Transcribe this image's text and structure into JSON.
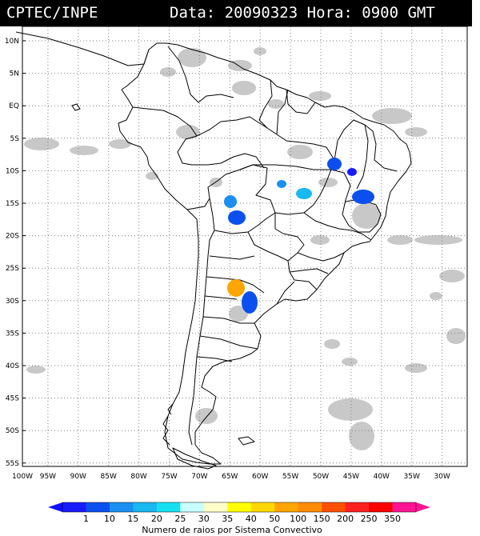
{
  "header": {
    "source": "CPTEC/INPE",
    "date_label": "Data:",
    "date_value": "20090323",
    "hour_label": "Hora:",
    "hour_value": "0900 GMT"
  },
  "map": {
    "lat_labels": [
      "10N",
      "5N",
      "EQ",
      "5S",
      "10S",
      "15S",
      "20S",
      "25S",
      "30S",
      "35S",
      "40S",
      "45S",
      "50S",
      "55S"
    ],
    "lon_labels": [
      "100W",
      "95W",
      "90W",
      "85W",
      "80W",
      "75W",
      "70W",
      "65W",
      "60W",
      "55W",
      "50W",
      "45W",
      "40W",
      "35W",
      "30W"
    ],
    "cloud_color": "#c8c8c8",
    "grid_color": "#808080"
  },
  "legend": {
    "title": "Numero de raios por Sistema Convectivo",
    "ticks": [
      "1",
      "10",
      "15",
      "20",
      "25",
      "30",
      "35",
      "40",
      "50",
      "100",
      "150",
      "200",
      "250",
      "350"
    ],
    "colors": [
      "#1a1aff",
      "#0b50ee",
      "#1a8ff0",
      "#18b8f0",
      "#16e0f0",
      "#c8ffff",
      "#ffffc8",
      "#ffff00",
      "#ffd700",
      "#ffa500",
      "#ff8c00",
      "#ff5000",
      "#ff2020",
      "#ff0000",
      "#ff1493"
    ]
  },
  "systems": [
    {
      "name": "system-north-a",
      "color": "#0b50ee"
    },
    {
      "name": "system-north-b",
      "color": "#1a1aff"
    },
    {
      "name": "system-center-a",
      "color": "#1a8ff0"
    },
    {
      "name": "system-center-b",
      "color": "#18b8f0"
    },
    {
      "name": "system-east",
      "color": "#0b50ee"
    },
    {
      "name": "system-west-a",
      "color": "#1a8ff0"
    },
    {
      "name": "system-west-b",
      "color": "#0b50ee"
    },
    {
      "name": "system-south-orange",
      "color": "#ffa500"
    },
    {
      "name": "system-south-blue",
      "color": "#0b50ee"
    }
  ]
}
